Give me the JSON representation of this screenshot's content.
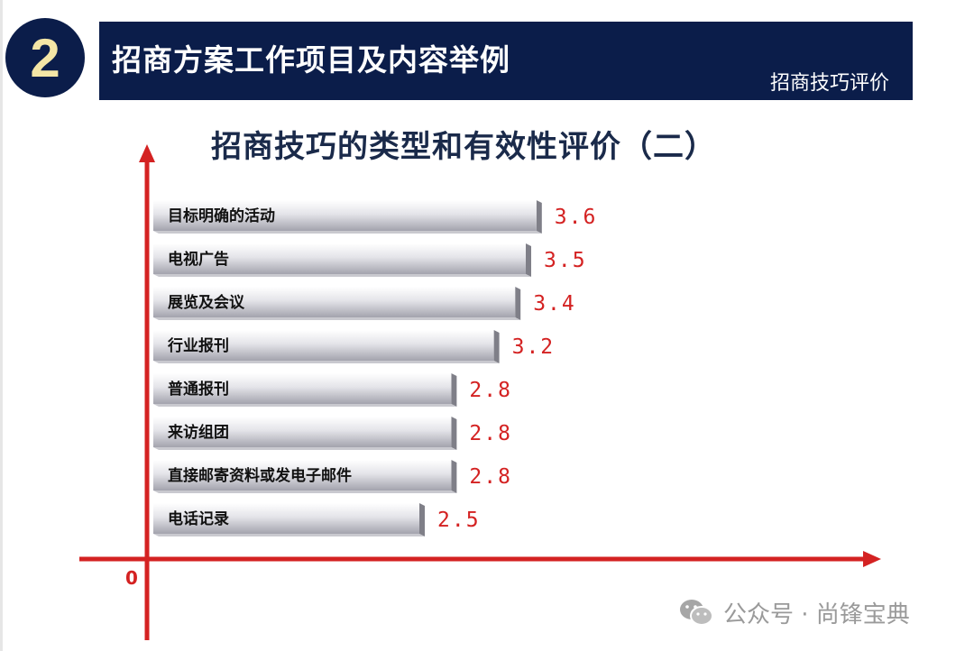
{
  "header": {
    "badge_number": "2",
    "title": "招商方案工作项目及内容举例",
    "subtitle": "招商技巧评价"
  },
  "chart_data": {
    "type": "bar",
    "orientation": "horizontal",
    "title": "招商技巧的类型和有效性评价（二）",
    "categories": [
      "目标明确的活动",
      "电视广告",
      "展览及会议",
      "行业报刊",
      "普通报刊",
      "来访组团",
      "直接邮寄资料或发电子邮件",
      "电话记录"
    ],
    "values": [
      3.6,
      3.5,
      3.4,
      3.2,
      2.8,
      2.8,
      2.8,
      2.5
    ],
    "value_labels": [
      "3.6",
      "3.5",
      "3.4",
      "3.2",
      "2.8",
      "2.8",
      "2.8",
      "2.5"
    ],
    "origin_label": "0",
    "grid": false,
    "legend": "none",
    "colors": {
      "axis": "#d42222",
      "value_text": "#d42222",
      "bar_light": "#f4f4f6",
      "bar_dark": "#9c9ca6"
    }
  },
  "watermark": {
    "text": "公众号 · 尚锋宝典",
    "icon": "wechat-icon"
  }
}
